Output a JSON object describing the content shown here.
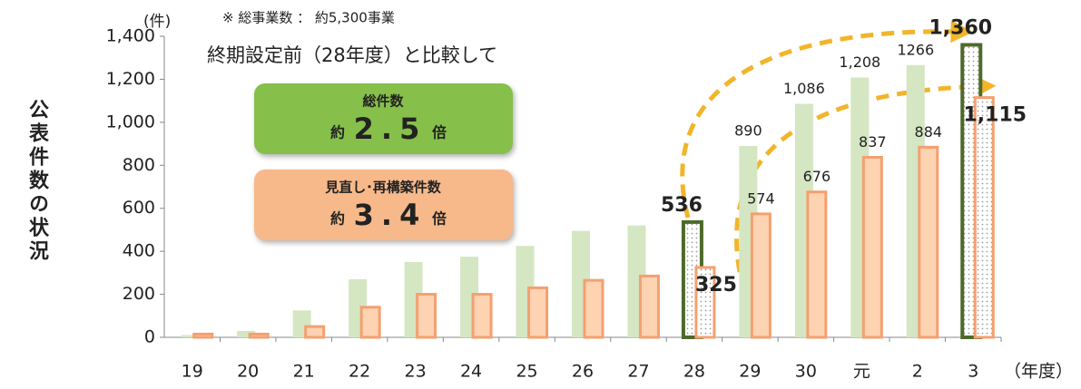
{
  "chart_data": {
    "type": "bar",
    "y_axis_label": "公表件数の状況",
    "y_unit": "(件)",
    "x_unit": "（年度）",
    "note": "※ 総事業数 ： 約5,300事業",
    "subtitle": "終期設定前（28年度）と比較して",
    "boxes": [
      {
        "title": "総件数",
        "prefix": "約",
        "value": "2.5",
        "suffix": "倍",
        "color": "#86bf4a"
      },
      {
        "title": "見直し･再構築件数",
        "prefix": "約",
        "value": "3.4",
        "suffix": "倍",
        "color": "#f7b98a"
      }
    ],
    "categories": [
      "19",
      "20",
      "21",
      "22",
      "23",
      "24",
      "25",
      "26",
      "27",
      "28",
      "29",
      "30",
      "元",
      "2",
      "3"
    ],
    "highlighted_categories": [
      "28",
      "3"
    ],
    "series": [
      {
        "name": "総件数",
        "color": "#d5e6c2",
        "values": [
          10,
          30,
          125,
          270,
          350,
          375,
          425,
          495,
          520,
          536,
          890,
          1086,
          1208,
          1266,
          1360
        ],
        "value_labels": [
          null,
          null,
          null,
          null,
          null,
          null,
          null,
          null,
          null,
          "536",
          "890",
          "1,086",
          "1,208",
          "1266",
          "1,360"
        ]
      },
      {
        "name": "見直し･再構築件数",
        "color": "#fdd3b2",
        "values": [
          15,
          15,
          50,
          140,
          200,
          200,
          230,
          265,
          285,
          325,
          574,
          676,
          837,
          884,
          1115
        ],
        "value_labels": [
          null,
          null,
          null,
          null,
          null,
          null,
          null,
          null,
          null,
          "325",
          "574",
          "676",
          "837",
          "884",
          "1,115"
        ]
      }
    ],
    "ylim": [
      0,
      1400
    ],
    "yticks": [
      0,
      200,
      400,
      600,
      800,
      {
        "value": 1000,
        "label": "1,000"
      },
      {
        "value": 1200,
        "label": "1,200"
      },
      {
        "value": 1400,
        "label": "1,400"
      }
    ],
    "grid": false
  }
}
